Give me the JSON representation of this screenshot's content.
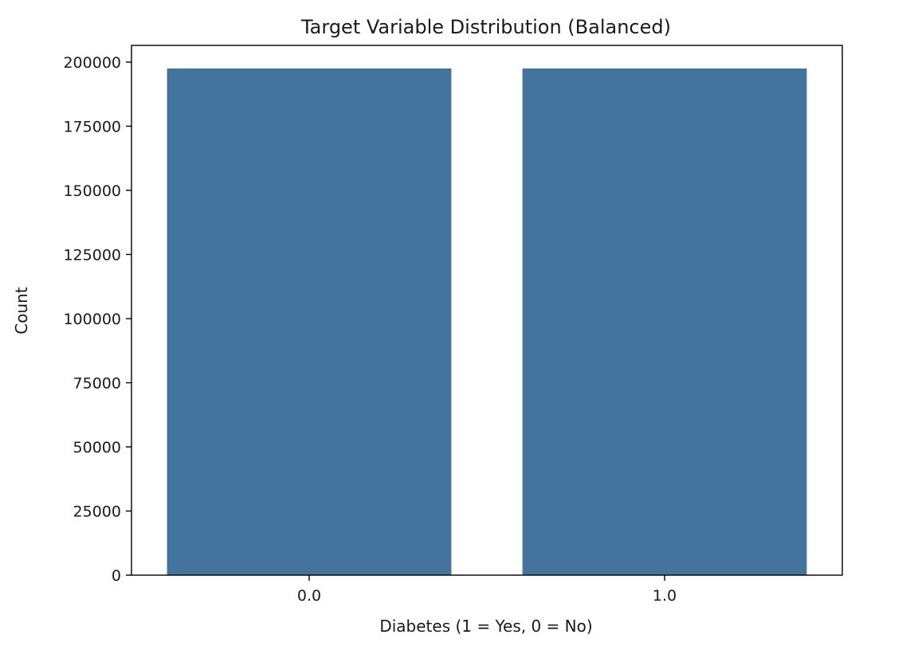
{
  "chart_data": {
    "type": "bar",
    "title": "Target Variable Distribution (Balanced)",
    "xlabel": "Diabetes (1 = Yes, 0 = No)",
    "ylabel": "Count",
    "categories": [
      "0.0",
      "1.0"
    ],
    "values": [
      197500,
      197500
    ],
    "ylim": [
      0,
      206500
    ],
    "yticks": [
      0,
      25000,
      50000,
      75000,
      100000,
      125000,
      150000,
      175000,
      200000
    ],
    "ytick_labels": [
      "0",
      "25000",
      "50000",
      "75000",
      "100000",
      "125000",
      "150000",
      "175000",
      "200000"
    ],
    "bar_color": "#44739d",
    "grid": false,
    "legend": "none"
  }
}
